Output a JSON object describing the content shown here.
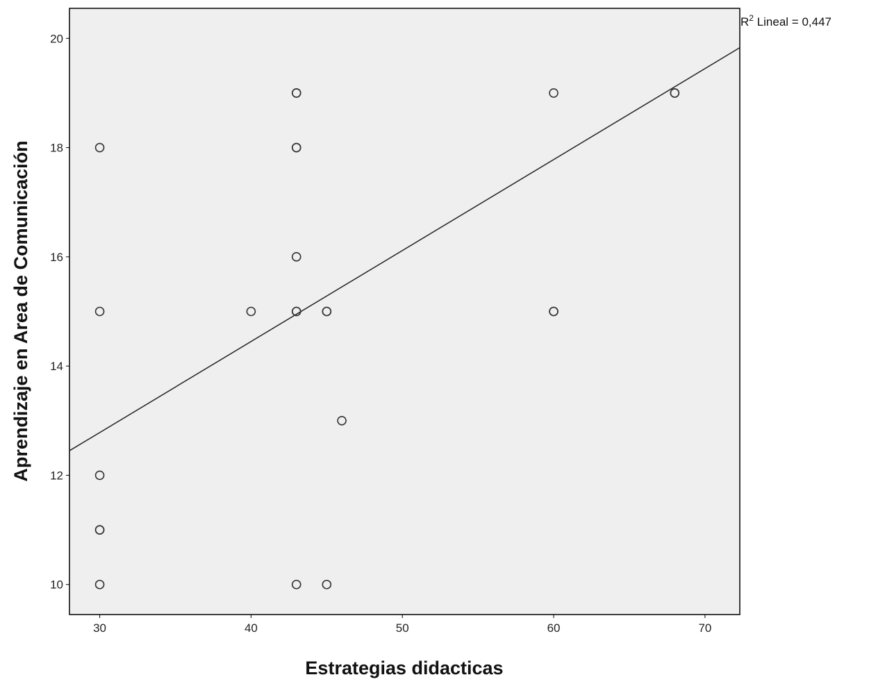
{
  "chart_data": {
    "type": "scatter",
    "title": "",
    "xlabel": "Estrategias didacticas",
    "ylabel": "Aprendizaje en Area de Comunicación",
    "xlim": [
      28,
      72.3
    ],
    "ylim": [
      9.45,
      20.55
    ],
    "x_ticks": [
      30,
      40,
      50,
      60,
      70
    ],
    "y_ticks": [
      10,
      12,
      14,
      16,
      18,
      20
    ],
    "grid": false,
    "legend": "none",
    "points": [
      {
        "x": 30,
        "y": 18
      },
      {
        "x": 30,
        "y": 15
      },
      {
        "x": 30,
        "y": 12
      },
      {
        "x": 30,
        "y": 11
      },
      {
        "x": 30,
        "y": 11
      },
      {
        "x": 30,
        "y": 10
      },
      {
        "x": 40,
        "y": 15
      },
      {
        "x": 43,
        "y": 19
      },
      {
        "x": 43,
        "y": 19
      },
      {
        "x": 43,
        "y": 18
      },
      {
        "x": 43,
        "y": 18
      },
      {
        "x": 43,
        "y": 16
      },
      {
        "x": 43,
        "y": 15
      },
      {
        "x": 43,
        "y": 15
      },
      {
        "x": 43,
        "y": 10
      },
      {
        "x": 45,
        "y": 15
      },
      {
        "x": 45,
        "y": 15
      },
      {
        "x": 45,
        "y": 10
      },
      {
        "x": 46,
        "y": 13
      },
      {
        "x": 60,
        "y": 19
      },
      {
        "x": 60,
        "y": 15
      },
      {
        "x": 60,
        "y": 15
      },
      {
        "x": 68,
        "y": 19
      },
      {
        "x": 68,
        "y": 19
      }
    ],
    "fit_line": {
      "type": "linear",
      "x_start": 28,
      "y_start": 12.45,
      "x_end": 72.3,
      "y_end": 19.83
    },
    "annotation": {
      "prefix": "R",
      "superscript": "2",
      "text": " Lineal = 0,447"
    },
    "colors": {
      "plot_background": "#efefef",
      "marker_stroke": "#333333",
      "line": "#222222",
      "frame": "#000000"
    }
  }
}
